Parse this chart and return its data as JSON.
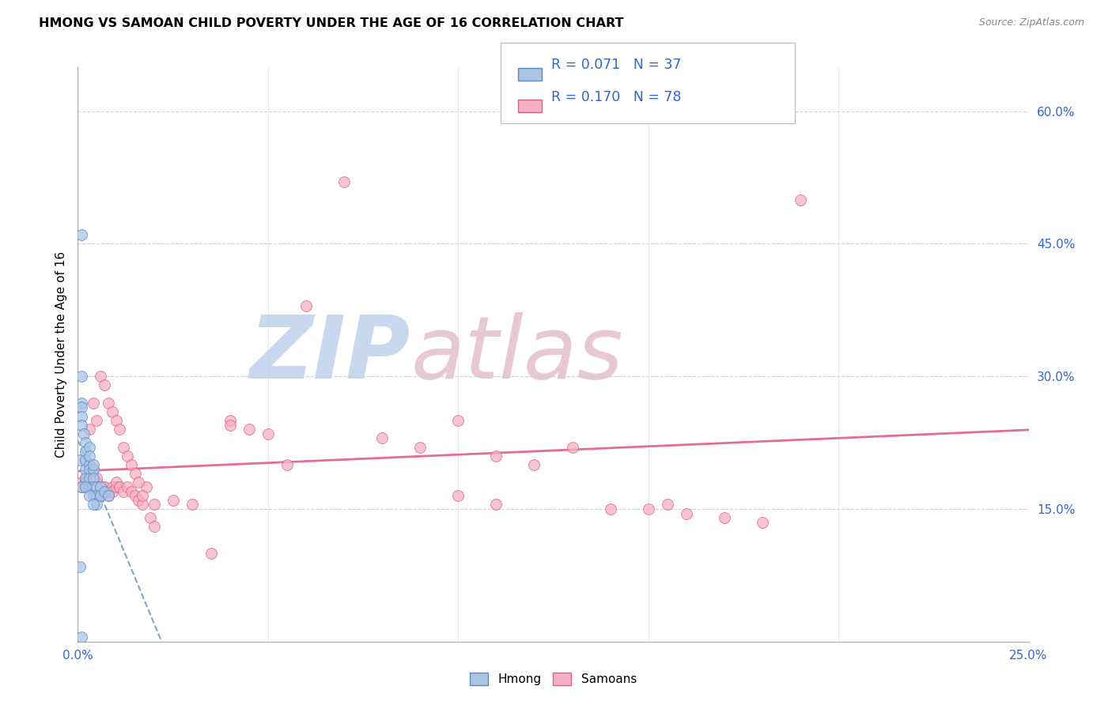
{
  "title": "HMONG VS SAMOAN CHILD POVERTY UNDER THE AGE OF 16 CORRELATION CHART",
  "source": "Source: ZipAtlas.com",
  "ylabel": "Child Poverty Under the Age of 16",
  "x_min": 0.0,
  "x_max": 0.25,
  "y_min": 0.0,
  "y_max": 0.65,
  "hmong_color": "#aac4e4",
  "hmong_edge": "#5588cc",
  "samoan_color": "#f5b0c5",
  "samoan_edge": "#e06080",
  "hmong_line_color": "#6699bb",
  "samoan_line_color": "#e06080",
  "legend_text_color": "#3366cc",
  "watermark_zip_color": "#c8d8ef",
  "watermark_atlas_color": "#e8c8d5",
  "hmong_x": [
    0.0005,
    0.001,
    0.001,
    0.001,
    0.001,
    0.0015,
    0.002,
    0.002,
    0.002,
    0.002,
    0.002,
    0.003,
    0.003,
    0.003,
    0.003,
    0.003,
    0.003,
    0.004,
    0.004,
    0.004,
    0.004,
    0.004,
    0.005,
    0.005,
    0.005,
    0.006,
    0.006,
    0.007,
    0.008,
    0.001,
    0.001,
    0.0005,
    0.001,
    0.002,
    0.003,
    0.004,
    0.001
  ],
  "hmong_y": [
    0.205,
    0.27,
    0.265,
    0.255,
    0.245,
    0.235,
    0.225,
    0.215,
    0.205,
    0.195,
    0.185,
    0.2,
    0.195,
    0.185,
    0.175,
    0.22,
    0.21,
    0.195,
    0.185,
    0.2,
    0.175,
    0.165,
    0.175,
    0.165,
    0.155,
    0.175,
    0.165,
    0.17,
    0.165,
    0.46,
    0.3,
    0.085,
    0.175,
    0.175,
    0.165,
    0.155,
    0.005
  ],
  "samoan_x": [
    0.001,
    0.001,
    0.002,
    0.002,
    0.002,
    0.003,
    0.003,
    0.003,
    0.004,
    0.004,
    0.004,
    0.005,
    0.005,
    0.005,
    0.006,
    0.006,
    0.006,
    0.007,
    0.007,
    0.007,
    0.008,
    0.008,
    0.009,
    0.009,
    0.01,
    0.01,
    0.011,
    0.012,
    0.013,
    0.014,
    0.015,
    0.016,
    0.017,
    0.018,
    0.019,
    0.02,
    0.003,
    0.004,
    0.005,
    0.006,
    0.007,
    0.008,
    0.009,
    0.01,
    0.011,
    0.012,
    0.013,
    0.014,
    0.015,
    0.016,
    0.017,
    0.04,
    0.04,
    0.045,
    0.05,
    0.055,
    0.06,
    0.07,
    0.08,
    0.09,
    0.1,
    0.1,
    0.11,
    0.11,
    0.12,
    0.13,
    0.14,
    0.15,
    0.155,
    0.16,
    0.17,
    0.18,
    0.19,
    0.02,
    0.025,
    0.03,
    0.035,
    0.005,
    0.006
  ],
  "samoan_y": [
    0.175,
    0.18,
    0.175,
    0.185,
    0.18,
    0.175,
    0.185,
    0.2,
    0.185,
    0.195,
    0.18,
    0.18,
    0.175,
    0.185,
    0.175,
    0.17,
    0.165,
    0.175,
    0.17,
    0.175,
    0.17,
    0.165,
    0.175,
    0.17,
    0.175,
    0.18,
    0.175,
    0.17,
    0.175,
    0.17,
    0.165,
    0.16,
    0.155,
    0.175,
    0.14,
    0.13,
    0.24,
    0.27,
    0.25,
    0.3,
    0.29,
    0.27,
    0.26,
    0.25,
    0.24,
    0.22,
    0.21,
    0.2,
    0.19,
    0.18,
    0.165,
    0.25,
    0.245,
    0.24,
    0.235,
    0.2,
    0.38,
    0.52,
    0.23,
    0.22,
    0.25,
    0.165,
    0.21,
    0.155,
    0.2,
    0.22,
    0.15,
    0.15,
    0.155,
    0.145,
    0.14,
    0.135,
    0.5,
    0.155,
    0.16,
    0.155,
    0.1,
    0.175,
    0.165
  ]
}
